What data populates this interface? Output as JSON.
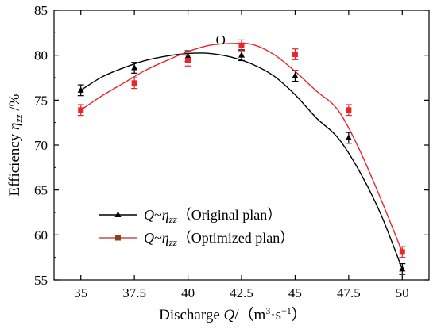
{
  "chart_data": {
    "type": "line",
    "title": "",
    "xlabel": {
      "prefix": "Discharge ",
      "var": "Q",
      "unit_open": "/（m",
      "unit_exp1": "3",
      "unit_mid": "·s",
      "unit_exp2": "−1",
      "unit_close": "）"
    },
    "ylabel": {
      "prefix": "Efficiency ",
      "var": "η",
      "sub": "zz",
      "suffix": " /%"
    },
    "x": [
      35,
      37.5,
      40,
      42.5,
      45,
      47.5,
      50
    ],
    "x_tick_labels": [
      "35",
      "37.5",
      "40",
      "42.5",
      "45",
      "47.5",
      "50"
    ],
    "y_ticks": [
      55,
      60,
      65,
      70,
      75,
      80,
      85
    ],
    "y_tick_labels": [
      "55",
      "60",
      "65",
      "70",
      "75",
      "80",
      "85"
    ],
    "xlim": [
      33.75,
      51.25
    ],
    "ylim": [
      55,
      85
    ],
    "grid": false,
    "legend_position": "lower-left",
    "annotation": {
      "text": "O",
      "x": 41.3,
      "y": 81.2
    },
    "series": [
      {
        "legend": {
          "var": "Q",
          "tilde": "~",
          "eta": "η",
          "sub": "zz",
          "label": "（Original plan）"
        },
        "color": "#000000",
        "marker": "triangle",
        "values": [
          76.1,
          78.6,
          79.9,
          80.0,
          77.7,
          70.8,
          56.2
        ],
        "errors": [
          0.6,
          0.6,
          0.6,
          0.6,
          0.6,
          0.6,
          0.6
        ],
        "curve_values": [
          76.1,
          77.6,
          78.6,
          79.4,
          79.9,
          80.2,
          80.2,
          79.8,
          79.0,
          77.7,
          75.6,
          73.0,
          70.8,
          67.1,
          62.3,
          56.2
        ]
      },
      {
        "legend": {
          "var": "Q",
          "tilde": "~",
          "eta": "η",
          "sub": "zz",
          "label": "（Optimized plan）"
        },
        "color": "#e8262b",
        "marker": "square",
        "values": [
          73.9,
          76.9,
          79.4,
          81.1,
          80.1,
          73.9,
          58.1
        ],
        "errors": [
          0.6,
          0.6,
          0.6,
          0.6,
          0.6,
          0.6,
          0.6
        ],
        "curve_values": [
          73.9,
          75.5,
          76.9,
          78.3,
          79.4,
          80.4,
          81.1,
          81.3,
          81.2,
          80.1,
          78.2,
          76.0,
          73.9,
          69.5,
          64.0,
          58.1
        ]
      }
    ]
  }
}
